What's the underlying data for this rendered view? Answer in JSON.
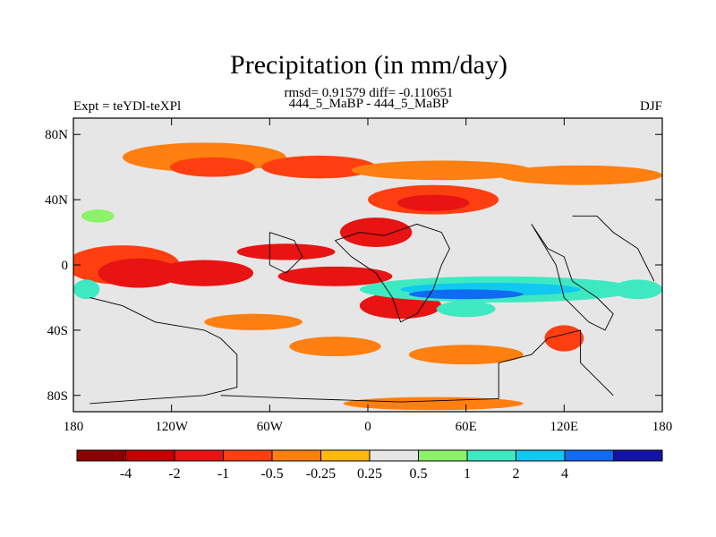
{
  "chart_data": {
    "type": "heatmap",
    "title": "Precipitation (in mm/day)",
    "stats_line": "rmsd= 0.91579 diff= -0.110651",
    "left_label": "Expt = teYDl-teXPl",
    "center_label": "444_5_MaBP - 444_5_MaBP",
    "right_label": "DJF",
    "units": "mm/day",
    "xaxis": {
      "range": [
        -180,
        180
      ],
      "ticks": [
        {
          "value": -180,
          "label": "180"
        },
        {
          "value": -120,
          "label": "120W"
        },
        {
          "value": -60,
          "label": "60W"
        },
        {
          "value": 0,
          "label": "0"
        },
        {
          "value": 60,
          "label": "60E"
        },
        {
          "value": 120,
          "label": "120E"
        },
        {
          "value": 180,
          "label": "180"
        }
      ]
    },
    "yaxis": {
      "range": [
        -90,
        90
      ],
      "ticks": [
        {
          "value": 80,
          "label": "80N"
        },
        {
          "value": 40,
          "label": "40N"
        },
        {
          "value": 0,
          "label": "0"
        },
        {
          "value": -40,
          "label": "40S"
        },
        {
          "value": -80,
          "label": "80S"
        }
      ]
    },
    "colorbar": {
      "colors": [
        "#8b0000",
        "#c40000",
        "#e81313",
        "#ff3f10",
        "#ff7f10",
        "#ffb80e",
        "#e6e6e6",
        "#8cf26a",
        "#3ee9c2",
        "#10c8f0",
        "#0f6cf0",
        "#1313a6"
      ],
      "levels": [
        -4,
        -2,
        -1,
        -0.5,
        -0.25,
        0.25,
        0.5,
        1,
        2,
        4
      ],
      "labels": [
        "-4",
        "-2",
        "-1",
        "-0.5",
        "-0.25",
        "0.25",
        "0.5",
        "1",
        "2",
        "4"
      ],
      "label_positions": [
        0,
        1,
        2,
        3,
        4,
        5,
        6,
        7,
        8,
        9
      ]
    },
    "anomaly_regions": [
      {
        "lon": -100,
        "lat": 66,
        "rlon": 50,
        "rlat": 9,
        "value": -0.3
      },
      {
        "lon": -95,
        "lat": 60,
        "rlon": 26,
        "rlat": 6,
        "value": -0.75
      },
      {
        "lon": -30,
        "lat": 60,
        "rlon": 35,
        "rlat": 7,
        "value": -0.75
      },
      {
        "lon": 45,
        "lat": 58,
        "rlon": 55,
        "rlat": 6,
        "value": -0.3
      },
      {
        "lon": 40,
        "lat": 40,
        "rlon": 40,
        "rlat": 9,
        "value": -0.75
      },
      {
        "lon": 40,
        "lat": 38,
        "rlon": 22,
        "rlat": 5,
        "value": -1.5
      },
      {
        "lon": 5,
        "lat": 20,
        "rlon": 22,
        "rlat": 9,
        "value": -1.5
      },
      {
        "lon": -50,
        "lat": 8,
        "rlon": 30,
        "rlat": 5,
        "value": -1.5
      },
      {
        "lon": -150,
        "lat": 0,
        "rlon": 35,
        "rlat": 12,
        "value": -0.75
      },
      {
        "lon": -140,
        "lat": -5,
        "rlon": 25,
        "rlat": 9,
        "value": -1.5
      },
      {
        "lon": -100,
        "lat": -5,
        "rlon": 30,
        "rlat": 8,
        "value": -1.5
      },
      {
        "lon": -20,
        "lat": -7,
        "rlon": 35,
        "rlat": 6,
        "value": -1.5
      },
      {
        "lon": 20,
        "lat": -25,
        "rlon": 25,
        "rlat": 8,
        "value": -1.5
      },
      {
        "lon": -70,
        "lat": -35,
        "rlon": 30,
        "rlat": 5,
        "value": -0.3
      },
      {
        "lon": -20,
        "lat": -50,
        "rlon": 28,
        "rlat": 6,
        "value": -0.3
      },
      {
        "lon": 60,
        "lat": -55,
        "rlon": 35,
        "rlat": 6,
        "value": -0.3
      },
      {
        "lon": 120,
        "lat": -45,
        "rlon": 12,
        "rlat": 8,
        "value": -0.75
      },
      {
        "lon": 40,
        "lat": -85,
        "rlon": 55,
        "rlat": 4,
        "value": -0.3
      },
      {
        "lon": 130,
        "lat": 55,
        "rlon": 50,
        "rlat": 6,
        "value": -0.3
      },
      {
        "lon": -165,
        "lat": 30,
        "rlon": 10,
        "rlat": 4,
        "value": 0.6
      },
      {
        "lon": -75,
        "lat": 28,
        "rlon": 18,
        "rlat": 4,
        "value": 0.3
      },
      {
        "lon": 90,
        "lat": 30,
        "rlon": 25,
        "rlat": 4,
        "value": 0.3
      },
      {
        "lon": 165,
        "lat": 30,
        "rlon": 15,
        "rlat": 5,
        "value": 0.3
      },
      {
        "lon": 80,
        "lat": -15,
        "rlon": 85,
        "rlat": 8,
        "value": 1.5
      },
      {
        "lon": 75,
        "lat": -15,
        "rlon": 55,
        "rlat": 4,
        "value": 3.0
      },
      {
        "lon": 60,
        "lat": -18,
        "rlon": 35,
        "rlat": 3,
        "value": 5.0
      },
      {
        "lon": 60,
        "lat": -27,
        "rlon": 18,
        "rlat": 5,
        "value": 1.0
      },
      {
        "lon": 165,
        "lat": -15,
        "rlon": 15,
        "rlat": 6,
        "value": 1.5
      },
      {
        "lon": -172,
        "lat": -15,
        "rlon": 8,
        "rlat": 6,
        "value": 1.5
      },
      {
        "lon": -110,
        "lat": -28,
        "rlon": 15,
        "rlat": 6,
        "value": 0.4
      },
      {
        "lon": -160,
        "lat": -45,
        "rlon": 10,
        "rlat": 3,
        "value": 0.3
      }
    ],
    "coastline_outline": true
  }
}
